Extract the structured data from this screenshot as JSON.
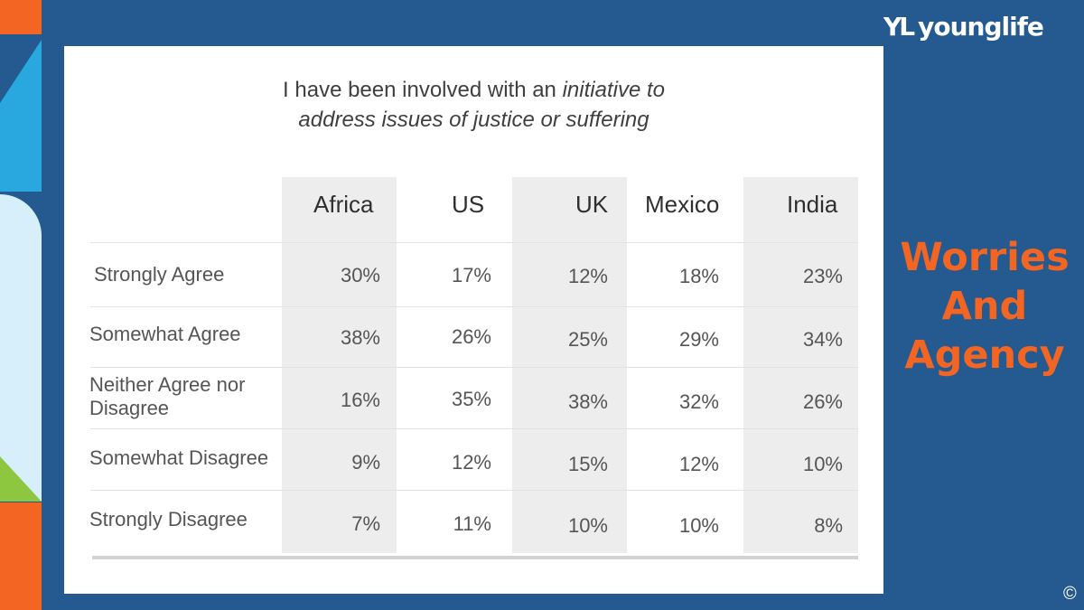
{
  "title": {
    "line1_plain": "I have been involved with an ",
    "line1_italic": "initiative to",
    "line2_italic": "address issues of justice or suffering"
  },
  "table": {
    "columns": [
      "Africa",
      "US",
      "UK",
      "Mexico",
      "India"
    ],
    "rows": [
      {
        "label": "Strongly Agree",
        "values": [
          "30%",
          "17%",
          "12%",
          "18%",
          "23%"
        ]
      },
      {
        "label": "Somewhat Agree",
        "values": [
          "38%",
          "26%",
          "25%",
          "29%",
          "34%"
        ]
      },
      {
        "label": "Neither Agree nor Disagree",
        "values": [
          "16%",
          "35%",
          "38%",
          "32%",
          "26%"
        ]
      },
      {
        "label": "Somewhat Disagree",
        "values": [
          "9%",
          "12%",
          "15%",
          "12%",
          "10%"
        ]
      },
      {
        "label": "Strongly Disagree",
        "values": [
          "7%",
          "11%",
          "10%",
          "10%",
          "8%"
        ]
      }
    ]
  },
  "brand": {
    "mark": "YL",
    "name": "younglife"
  },
  "side_title": {
    "line1": "Worries",
    "line2": "And",
    "line3": "Agency"
  },
  "copyright": "©",
  "colors": {
    "background": "#245a8f",
    "accent_orange": "#f26522",
    "card": "#ffffff",
    "shaded_column": "#ededed"
  }
}
